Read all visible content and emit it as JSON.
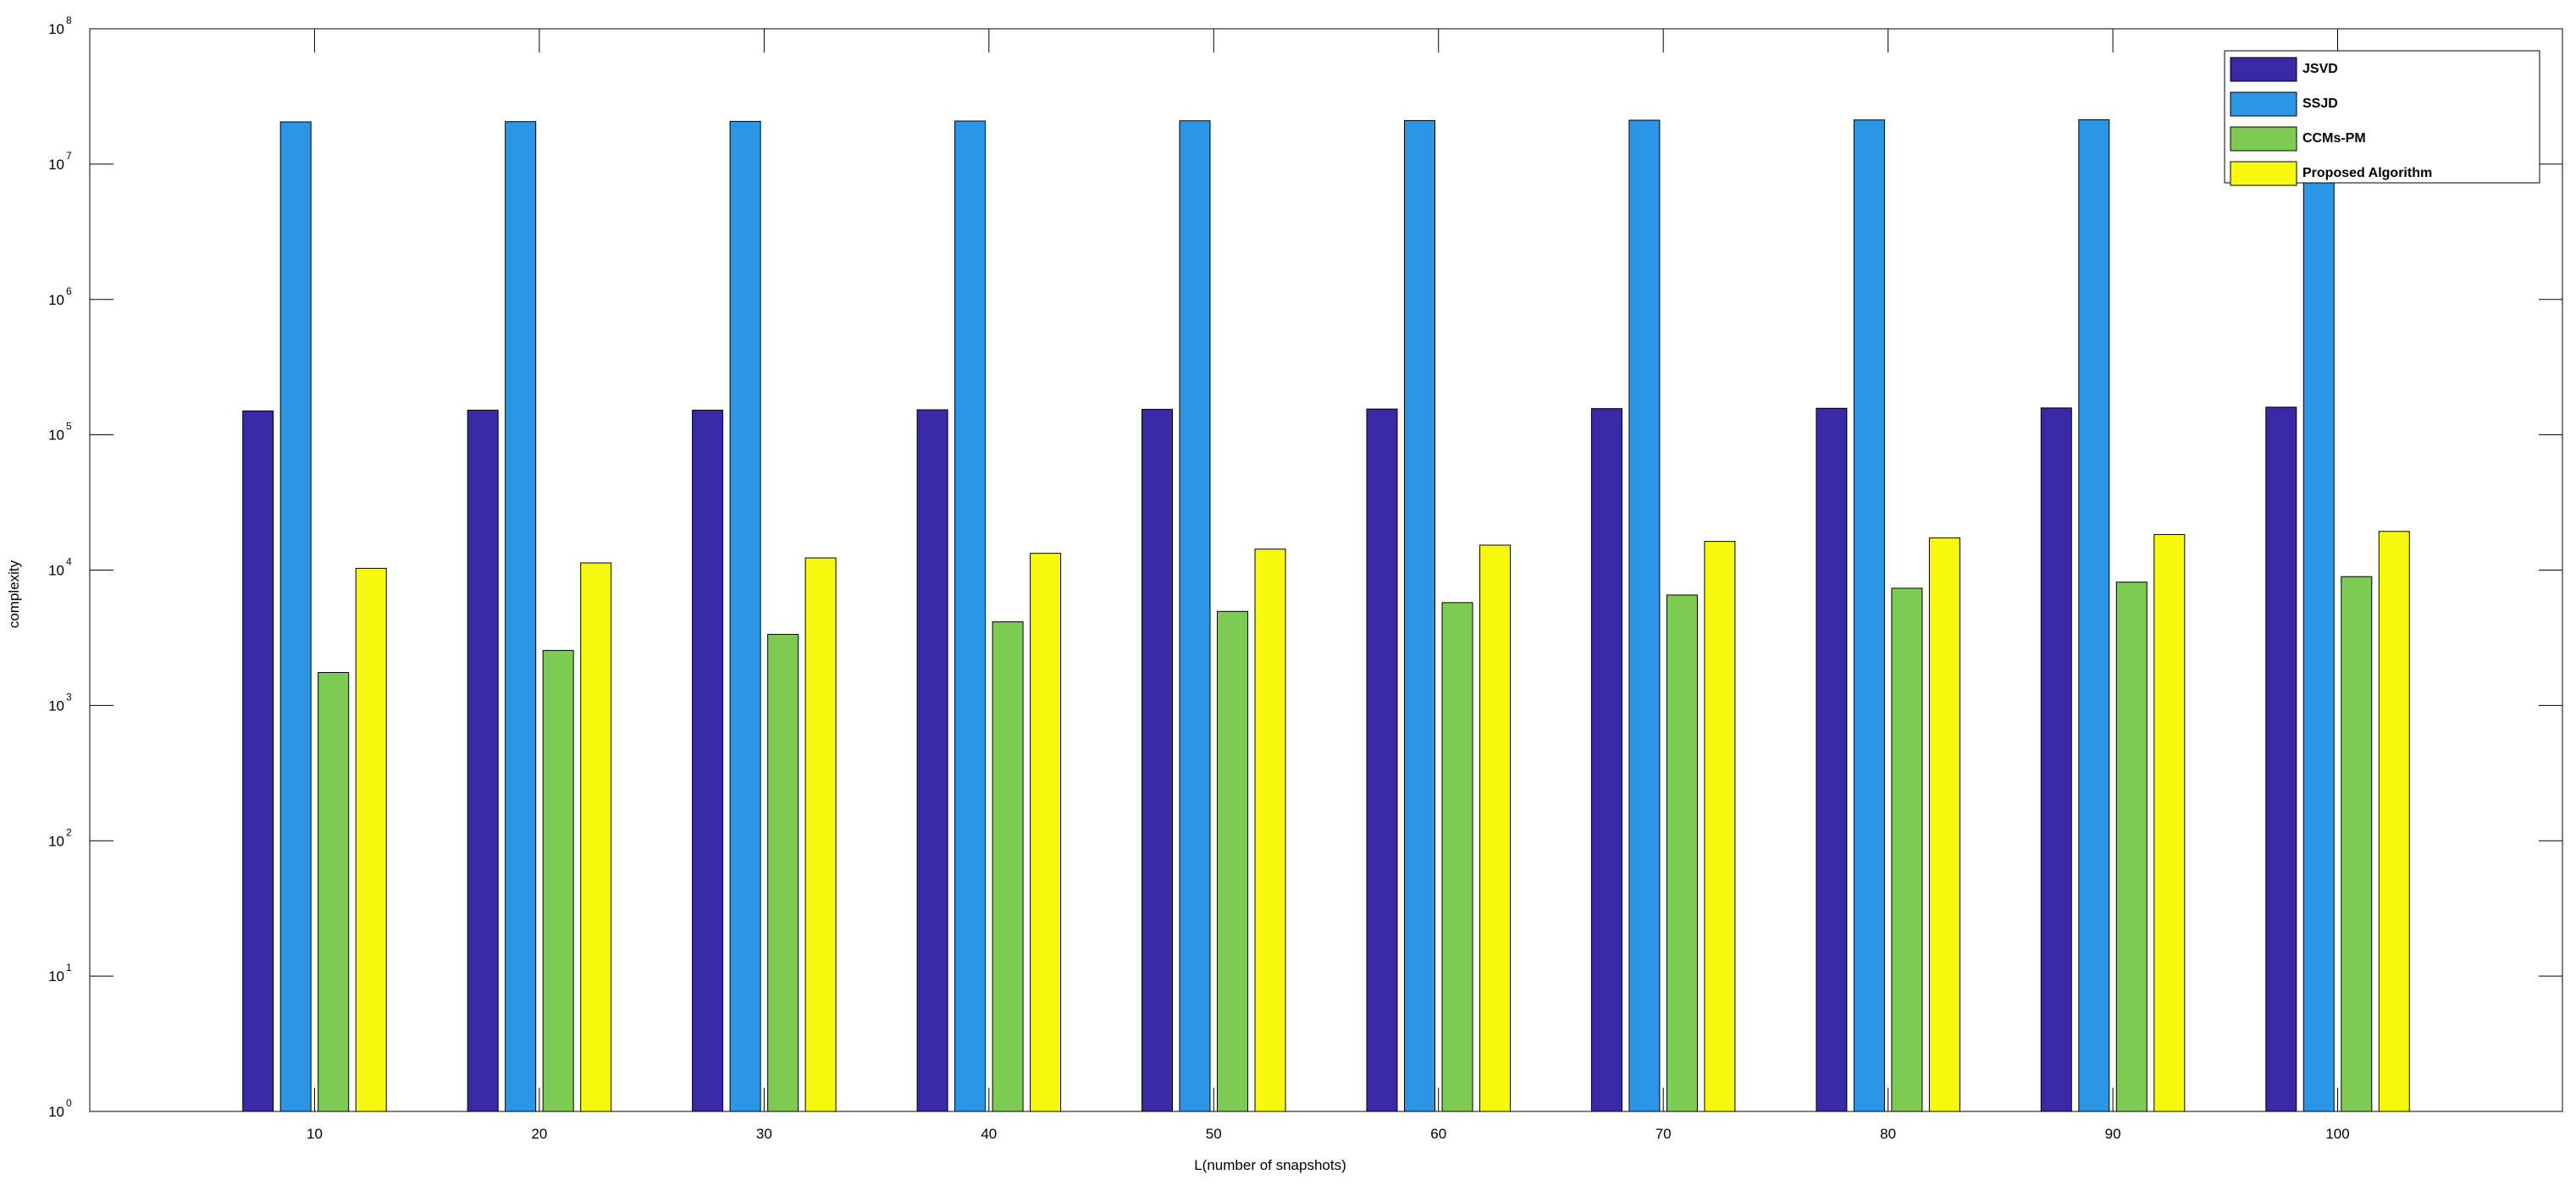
{
  "chart_data": {
    "type": "bar",
    "scale_y": "log",
    "grid": false,
    "legend_position": "top-right",
    "xlabel": "L(number of snapshots)",
    "ylabel": "complexity",
    "categories": [
      "10",
      "20",
      "30",
      "40",
      "50",
      "60",
      "70",
      "80",
      "90",
      "100"
    ],
    "xlim": [
      0,
      110
    ],
    "ylim": [
      1,
      100000000
    ],
    "y_ticks": [
      {
        "base": "10",
        "exp": "0",
        "value": 1
      },
      {
        "base": "10",
        "exp": "1",
        "value": 10
      },
      {
        "base": "10",
        "exp": "2",
        "value": 100
      },
      {
        "base": "10",
        "exp": "3",
        "value": 1000
      },
      {
        "base": "10",
        "exp": "4",
        "value": 10000
      },
      {
        "base": "10",
        "exp": "5",
        "value": 100000
      },
      {
        "base": "10",
        "exp": "6",
        "value": 1000000
      },
      {
        "base": "10",
        "exp": "7",
        "value": 10000000
      },
      {
        "base": "10",
        "exp": "8",
        "value": 100000000
      }
    ],
    "series": [
      {
        "name": "JSVD",
        "color": "#3a29a6",
        "values": [
          150000,
          152000,
          152000,
          153000,
          154000,
          155000,
          156000,
          157000,
          158000,
          160000
        ]
      },
      {
        "name": "SSJD",
        "color": "#2c96e6",
        "values": [
          20500000,
          20600000,
          20700000,
          20800000,
          20900000,
          21000000,
          21100000,
          21200000,
          21300000,
          21500000
        ]
      },
      {
        "name": "CCMs-PM",
        "color": "#7ecb54",
        "values": [
          1750,
          2550,
          3350,
          4150,
          4950,
          5750,
          6550,
          7350,
          8150,
          8950
        ]
      },
      {
        "name": "Proposed Algorithm",
        "color": "#f8f80e",
        "values": [
          10300,
          11300,
          12300,
          13300,
          14300,
          15300,
          16300,
          17300,
          18300,
          19300
        ]
      }
    ]
  }
}
